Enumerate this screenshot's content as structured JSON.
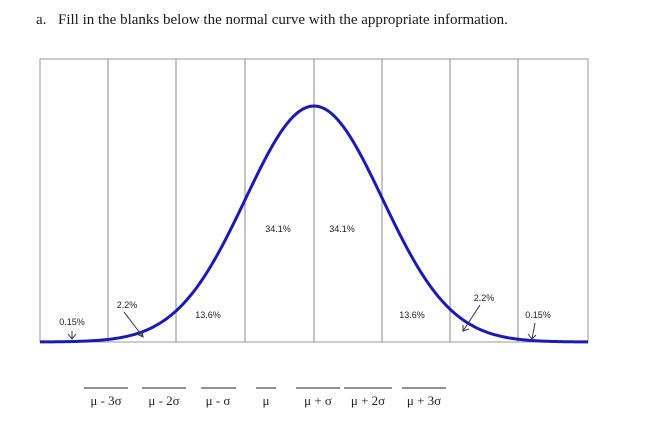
{
  "question": {
    "letter": "a.",
    "text": "Fill in the blanks below the normal curve with the appropriate information."
  },
  "colors": {
    "curve": "#1a1ab8",
    "divider": "#8a8a8a",
    "frame": "#9a9a9a",
    "arrow": "#333333"
  },
  "percent_labels": {
    "center_left": "34.1%",
    "center_right": "34.1%",
    "mid_left": "13.6%",
    "mid_right": "13.6%",
    "tail_left": "2.2%",
    "tail_right": "2.2%",
    "far_left": "0.15%",
    "far_right": "0.15%"
  },
  "blanks": [
    "μ - 3σ",
    "μ - 2σ",
    "μ - σ",
    "μ",
    "μ + σ",
    "μ + 2σ",
    "μ + 3σ"
  ]
}
